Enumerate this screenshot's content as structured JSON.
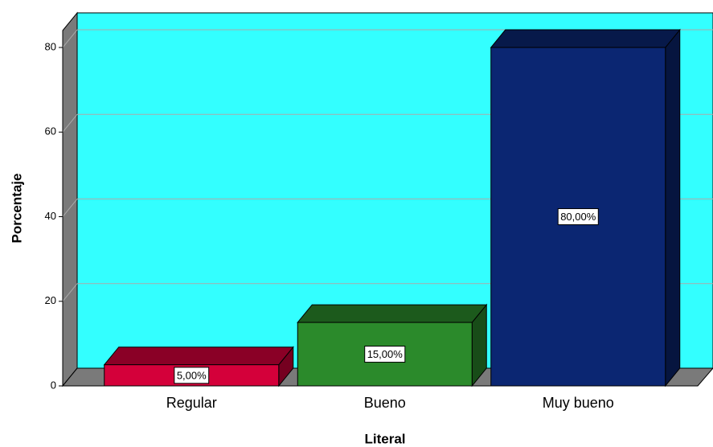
{
  "chart_data": {
    "type": "bar3d",
    "x_label": "Literal",
    "y_label": "Porcentaje",
    "categories": [
      "Regular",
      "Bueno",
      "Muy bueno"
    ],
    "values": [
      5,
      15,
      80
    ],
    "value_labels": [
      "5,00%",
      "15,00%",
      "80,00%"
    ],
    "colors": [
      "#d4003a",
      "#2b8a2b",
      "#0b2672"
    ],
    "ylim": [
      0,
      84
    ],
    "yticks": [
      0,
      20,
      40,
      60,
      80
    ],
    "grid": true,
    "background": "#33ffff"
  }
}
